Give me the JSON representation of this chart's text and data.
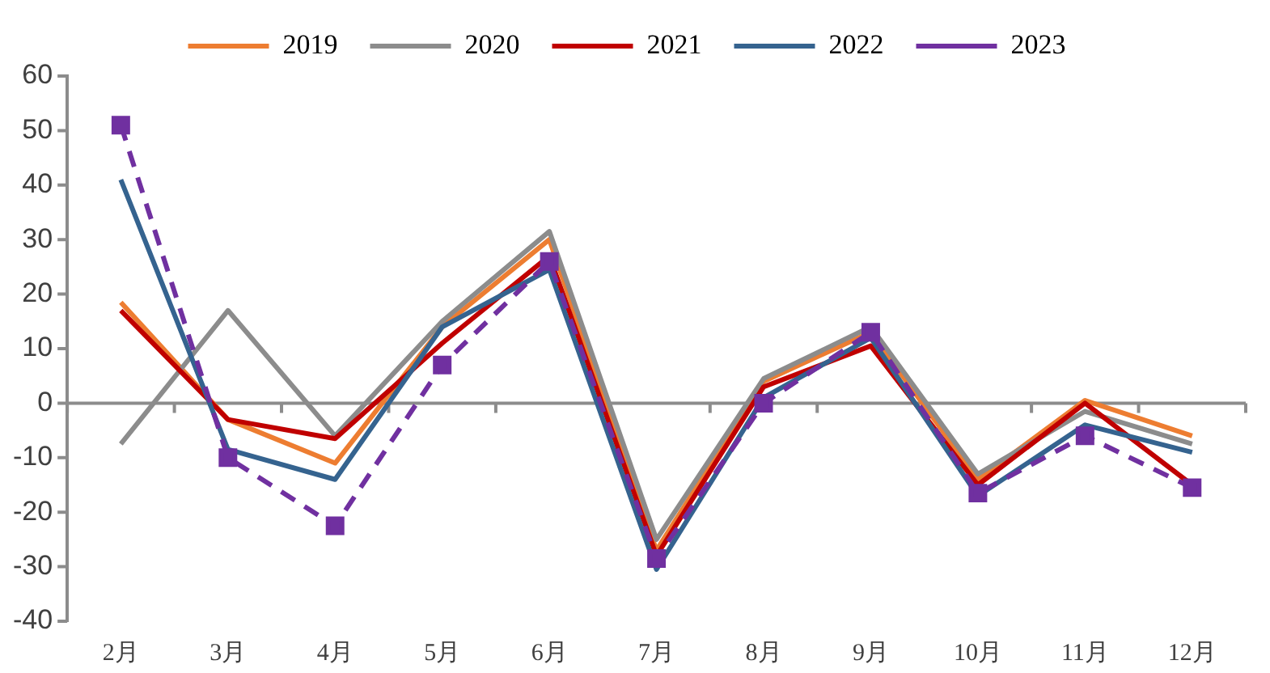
{
  "chart_data": {
    "type": "line",
    "categories": [
      "2月",
      "3月",
      "4月",
      "5月",
      "6月",
      "7月",
      "8月",
      "9月",
      "10月",
      "11月",
      "12月"
    ],
    "series": [
      {
        "name": "2019",
        "color": "#ed7d31",
        "values": [
          18.5,
          -3,
          -11,
          14,
          30,
          -27,
          4,
          13,
          -14,
          0.5,
          -6
        ]
      },
      {
        "name": "2020",
        "color": "#8c8c8c",
        "values": [
          -7.5,
          17,
          -6,
          15,
          31.5,
          -25,
          4.5,
          14,
          -13,
          -1.5,
          -7.5
        ]
      },
      {
        "name": "2021",
        "color": "#c00000",
        "values": [
          17,
          -3,
          -6.5,
          11,
          27,
          -28,
          3,
          10.5,
          -15,
          0,
          -15
        ]
      },
      {
        "name": "2022",
        "color": "#35638f",
        "values": [
          41,
          -8.5,
          -14,
          14,
          24.5,
          -30.5,
          1,
          12,
          -17,
          -4,
          -9
        ]
      },
      {
        "name": "2023",
        "color": "#7030a0",
        "values": [
          51,
          -10,
          -22.5,
          7,
          26,
          -28.5,
          0,
          13,
          -16.5,
          -6,
          -15.5
        ],
        "marker": "square",
        "line_style": "dashed"
      }
    ],
    "ylim": [
      -40,
      60
    ],
    "yticks": [
      -40,
      -30,
      -20,
      -10,
      0,
      10,
      20,
      30,
      40,
      50,
      60
    ],
    "ref_lines": [
      {
        "axis": "y",
        "value": 0,
        "color": "#8c8c8c",
        "line_style": "solid"
      }
    ],
    "grid": false,
    "legend": "top",
    "marker": "none",
    "line_style": "solid"
  }
}
